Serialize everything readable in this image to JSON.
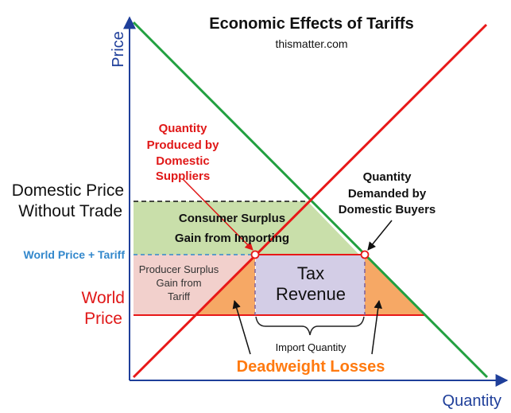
{
  "title": "Economic Effects of Tariffs",
  "subtitle": "thismatter.com",
  "axes": {
    "y_label": "Price",
    "x_label": "Quantity",
    "color": "#1f3f9a"
  },
  "curves": {
    "demand_color": "#22a040",
    "supply_color": "#e81818"
  },
  "price_levels": {
    "domestic_line1": "Domestic Price",
    "domestic_line2": "Without Trade",
    "world_plus_tariff": "World Price + Tariff",
    "world_line1": "World",
    "world_line2": "Price"
  },
  "annotations": {
    "qty_produced": [
      "Quantity",
      "Produced by",
      "Domestic",
      "Suppliers"
    ],
    "qty_demanded": [
      "Quantity",
      "Demanded by",
      "Domestic Buyers"
    ],
    "consumer_surplus": [
      "Consumer Surplus",
      "Gain from Importing"
    ],
    "producer_surplus": [
      "Producer Surplus",
      "Gain from",
      "Tariff"
    ],
    "tax_revenue": [
      "Tax",
      "Revenue"
    ],
    "import_quantity": "Import Quantity",
    "deadweight_losses": "Deadweight Losses"
  },
  "region_colors": {
    "consumer_surplus": "#c9dfaa",
    "producer_surplus": "#f2d0cc",
    "tax_revenue": "#d3cde6",
    "deadweight": "#f6a865"
  }
}
